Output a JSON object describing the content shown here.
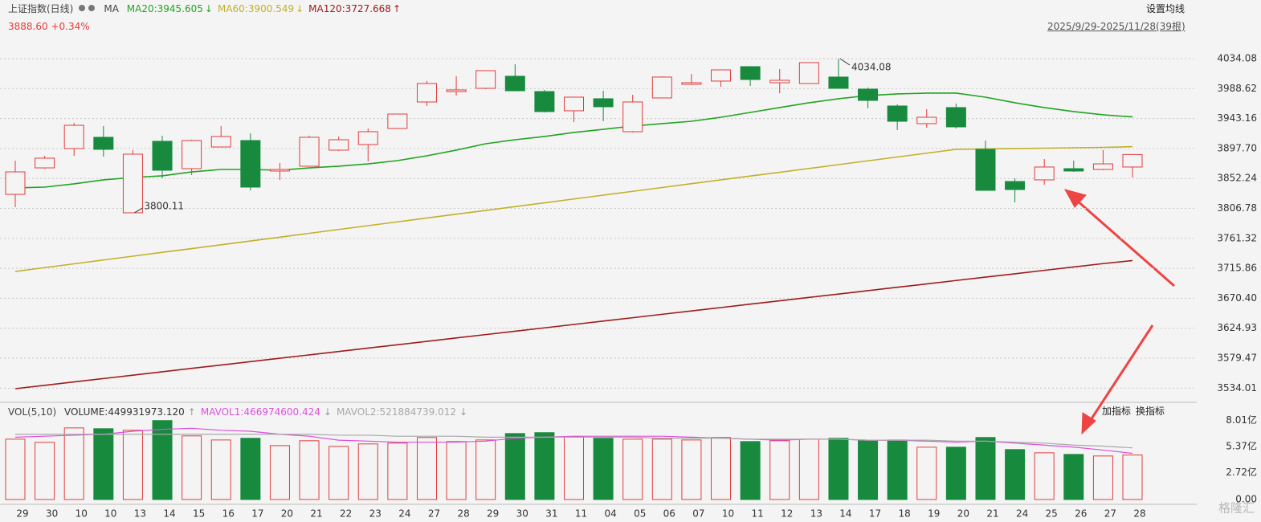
{
  "chart_data": [
    {
      "type": "candlestick",
      "title": "上证指数(日线)",
      "indicator": "MA",
      "quote": "3888.60 +0.34%",
      "range_label": "2025/9/29-2025/11/28(39根)",
      "setting_label": "设置均线",
      "categories": [
        "29",
        "30",
        "10",
        "10",
        "13",
        "14",
        "15",
        "16",
        "17",
        "20",
        "21",
        "22",
        "23",
        "24",
        "27",
        "28",
        "29",
        "30",
        "31",
        "11",
        "04",
        "05",
        "06",
        "07",
        "10",
        "11",
        "12",
        "13",
        "14",
        "17",
        "18",
        "19",
        "20",
        "21",
        "24",
        "25",
        "26",
        "27",
        "28"
      ],
      "open": [
        3828.1,
        3868.3,
        3897.6,
        3914.7,
        3800.11,
        3908.6,
        3867.1,
        3900,
        3909.8,
        3863.5,
        3870.8,
        3895.2,
        3903.7,
        3928.1,
        3968.3,
        3984.1,
        3989,
        4007.3,
        3984.1,
        3954.9,
        3973.2,
        3923.2,
        3974.4,
        3995.1,
        4000,
        4021.9,
        3997.5,
        3996.3,
        4006.1,
        3987.8,
        3962.2,
        3935.4,
        3959.8,
        3896.4,
        3847.6,
        3850.1,
        3867.1,
        3865.9,
        3869.6
      ],
      "high": [
        3879.3,
        3886.6,
        3936.6,
        3931.7,
        3895.2,
        3917.1,
        3911,
        3931.7,
        3920.7,
        3875.7,
        3917.1,
        3915.9,
        3928.1,
        3950,
        4000,
        4007.3,
        4015.8,
        4025.6,
        3986.6,
        3975.6,
        3985.3,
        3979.2,
        4007.3,
        4010.9,
        4017,
        4021.9,
        4018.3,
        4028,
        4034.08,
        3990.2,
        3964.6,
        3957.3,
        3965.8,
        3909.8,
        3852.5,
        3881.7,
        3879.3,
        3895.2,
        3888.6
      ],
      "low": [
        3808.6,
        3867.1,
        3886.6,
        3885.4,
        3800.11,
        3852.5,
        3857.4,
        3900,
        3834.2,
        3850.1,
        3870.8,
        3893.9,
        3878.1,
        3928.1,
        3962.2,
        3978,
        3987.8,
        3985.3,
        3952.4,
        3937.8,
        3939,
        3922,
        3974.4,
        3993.9,
        3991.4,
        3992.7,
        3981.7,
        3996.3,
        3989,
        3958.5,
        3925.6,
        3929.3,
        3928.1,
        3834.2,
        3815.9,
        3842.7,
        3862.2,
        3864.7,
        3853.7
      ],
      "close": [
        3862.2,
        3883,
        3932.9,
        3896.4,
        3889.1,
        3864.7,
        3909.8,
        3915.9,
        3839.1,
        3865.9,
        3914.7,
        3911,
        3923.2,
        3950,
        3996.3,
        3986.6,
        4015.8,
        3985.3,
        3953.7,
        3975.6,
        3961,
        3968.3,
        4006.1,
        3997.5,
        4017,
        4002.4,
        4001.2,
        4028,
        3989,
        3970.7,
        3939,
        3945.1,
        3930.5,
        3834.2,
        3835.4,
        3869.6,
        3863.5,
        3874.4,
        3888.6
      ],
      "up_color": "#e23c3c",
      "down_color": "#188a3e",
      "series": [
        {
          "name": "MA20:3945.605",
          "trend": "↓",
          "color": "#22a322",
          "values": [
            3837.9,
            3839.1,
            3844.0,
            3850.1,
            3853.7,
            3856.2,
            3862.2,
            3865.9,
            3865.9,
            3864.7,
            3868.3,
            3870.8,
            3874.4,
            3879.3,
            3886.6,
            3895.2,
            3904.9,
            3911.0,
            3915.9,
            3922.0,
            3926.8,
            3931.7,
            3935.4,
            3939.0,
            3945.1,
            3952.4,
            3959.8,
            3967.1,
            3973.2,
            3978.0,
            3980.5,
            3981.7,
            3981.7,
            3975.6,
            3967.1,
            3959.8,
            3953.7,
            3948.8,
            3945.6
          ]
        },
        {
          "name": "MA60:3900.549",
          "trend": "↓",
          "color": "#c2b128",
          "values": [
            3711.1,
            3716.9,
            3722.7,
            3728.5,
            3734.3,
            3740.1,
            3745.8,
            3751.6,
            3757.4,
            3763.2,
            3769.0,
            3774.8,
            3780.6,
            3786.4,
            3792.2,
            3798.0,
            3803.7,
            3809.5,
            3815.3,
            3821.1,
            3826.9,
            3832.7,
            3838.5,
            3844.3,
            3850.1,
            3855.9,
            3861.6,
            3867.4,
            3873.2,
            3879.0,
            3884.8,
            3890.6,
            3896.4,
            3897.0,
            3897.6,
            3898.2,
            3898.8,
            3899.4,
            3900.5
          ]
        },
        {
          "name": "MA120:3727.668",
          "trend": "↑",
          "color": "#a01b1b",
          "values": [
            3533.2,
            3538.3,
            3543.5,
            3548.6,
            3553.7,
            3558.9,
            3564.0,
            3569.1,
            3574.2,
            3579.4,
            3584.5,
            3589.6,
            3594.8,
            3599.9,
            3605.0,
            3610.2,
            3615.3,
            3620.4,
            3625.5,
            3630.7,
            3635.8,
            3640.9,
            3646.1,
            3651.2,
            3656.3,
            3661.5,
            3666.6,
            3671.7,
            3676.8,
            3682.0,
            3687.1,
            3692.2,
            3697.4,
            3702.5,
            3707.6,
            3712.8,
            3717.9,
            3723.0,
            3727.7
          ]
        }
      ],
      "ylim": [
        3513.7,
        4068.2
      ],
      "yticks": [
        4034.08,
        3988.62,
        3943.16,
        {
          "value": 3897.7,
          "label": "3897.70"
        },
        3852.24,
        3806.78,
        3761.32,
        3715.86,
        {
          "value": 3670.4,
          "label": "3670.40"
        },
        3624.93,
        3579.47,
        3534.01
      ],
      "grid": true,
      "annotations": [
        {
          "text": "4034.08"
        },
        {
          "text": "3800.11"
        }
      ]
    },
    {
      "type": "bar",
      "legend_title": "VOL(5,10)",
      "buttons": [
        "加指标",
        "换指标"
      ],
      "series": [
        {
          "name": "VOLUME:449931973.120",
          "trend": "↑",
          "color": "#333333",
          "values": [
            6.1,
            5.78,
            7.24,
            7.16,
            7.0,
            7.98,
            6.43,
            6.02,
            6.19,
            5.45,
            5.94,
            5.37,
            5.62,
            5.7,
            6.27,
            5.86,
            6.02,
            6.67,
            6.76,
            6.35,
            6.19,
            6.1,
            6.1,
            6.02,
            6.27,
            5.86,
            5.94,
            6.1,
            6.19,
            5.94,
            6.02,
            5.29,
            5.29,
            6.27,
            5.05,
            4.72,
            4.56,
            4.4,
            4.5
          ]
        },
        {
          "name": "MAVOL1:466974600.424",
          "trend": "↓",
          "color": "#dd4fdd",
          "values": [
            6.3,
            6.4,
            6.5,
            6.6,
            6.9,
            7.1,
            7.2,
            7.0,
            6.9,
            6.6,
            6.4,
            6.0,
            5.9,
            5.8,
            5.8,
            5.8,
            5.9,
            6.2,
            6.3,
            6.4,
            6.4,
            6.4,
            6.4,
            6.3,
            6.2,
            6.1,
            6.0,
            6.1,
            6.1,
            6.0,
            6.0,
            5.9,
            5.8,
            5.9,
            5.7,
            5.5,
            5.3,
            5.0,
            4.67
          ]
        },
        {
          "name": "MAVOL2:521884739.012",
          "trend": "↓",
          "color": "#a8a8a8",
          "values": [
            6.6,
            6.6,
            6.6,
            6.6,
            6.6,
            6.6,
            6.6,
            6.6,
            6.6,
            6.6,
            6.6,
            6.5,
            6.5,
            6.4,
            6.4,
            6.4,
            6.3,
            6.3,
            6.3,
            6.3,
            6.3,
            6.3,
            6.2,
            6.2,
            6.2,
            6.1,
            6.1,
            6.1,
            6.1,
            6.0,
            6.0,
            6.0,
            5.9,
            5.9,
            5.8,
            5.7,
            5.5,
            5.4,
            5.22
          ]
        }
      ],
      "ylim": [
        0,
        9.5
      ],
      "yticks": [
        {
          "value": 8.01,
          "label": "8.01亿"
        },
        {
          "value": 5.37,
          "label": "5.37亿"
        },
        {
          "value": 2.72,
          "label": "2.72亿"
        },
        {
          "value": 0,
          "label": "0.00"
        }
      ]
    }
  ],
  "watermark": "格隆汇"
}
